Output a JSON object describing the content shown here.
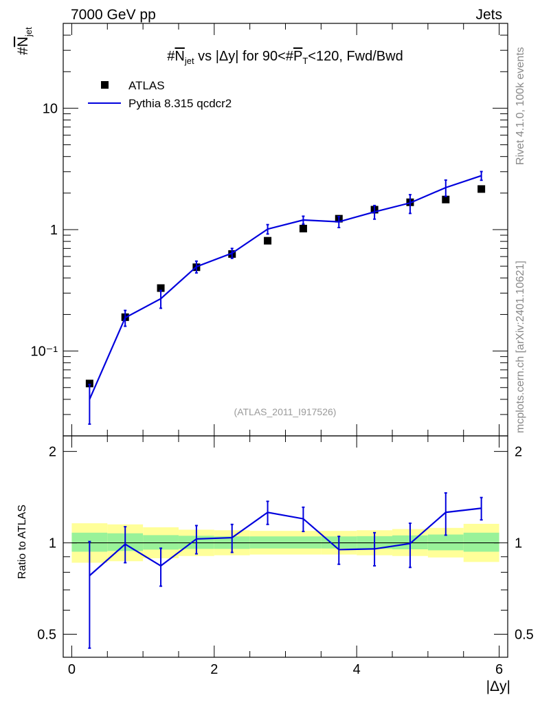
{
  "header": {
    "energy_label": "7000 GeV pp",
    "category_label": "Jets",
    "side_label_top": "Rivet 4.1.0,  100k events",
    "side_label_bottom": "mcplots.cern.ch [arXiv:2401.10621]",
    "analysis_id": "(ATLAS_2011_I917526)"
  },
  "chart_data": {
    "type": "scatter",
    "title": "#N_jet vs |Δy| for 90<#P_T<120, Fwd/Bwd",
    "title_parts": {
      "pre": "#",
      "n": "N",
      "n_sub": "jet",
      "mid": " vs |Δy| for 90<#",
      "p": "P",
      "p_sub": "T",
      "post": "<120, Fwd/Bwd"
    },
    "ylabel_main": "#N_jet",
    "ylabel_main_parts": {
      "hash": "#",
      "n": "N",
      "sub": "jet"
    },
    "ylabel_ratio": "Ratio to ATLAS",
    "xlabel": "|Δy|",
    "xlim": [
      -0.12,
      6.12
    ],
    "ylim_main": [
      0.02,
      50
    ],
    "ylim_ratio": [
      0.42,
      2.25
    ],
    "y_scale_main": "log",
    "y_scale_ratio": "log",
    "x_ticks": [
      0,
      2,
      4,
      6
    ],
    "x_tick_labels": [
      "0",
      "2",
      "4",
      "6"
    ],
    "y_ticks_main": [
      0.1,
      1,
      10
    ],
    "y_tick_labels_main": [
      "10⁻¹",
      "1",
      "10"
    ],
    "y_ticks_ratio": [
      0.5,
      1,
      2
    ],
    "y_tick_labels_ratio": [
      "0.5",
      "1",
      "2"
    ],
    "x": [
      0.25,
      0.75,
      1.25,
      1.75,
      2.25,
      2.75,
      3.25,
      3.75,
      4.25,
      4.75,
      5.25,
      5.75
    ],
    "series": [
      {
        "name": "ATLAS",
        "style": "markers",
        "values": [
          0.054,
          0.19,
          0.33,
          0.49,
          0.63,
          0.81,
          1.02,
          1.23,
          1.46,
          1.68,
          1.77,
          2.16
        ]
      },
      {
        "name": "Pythia 8.315 qcdcr2",
        "style": "line",
        "color": "#0000dd",
        "values": [
          0.04,
          0.188,
          0.27,
          0.495,
          0.64,
          1.01,
          1.2,
          1.16,
          1.4,
          1.66,
          2.22,
          2.78
        ],
        "err_low": [
          0.025,
          0.16,
          0.225,
          0.44,
          0.58,
          0.92,
          1.11,
          1.04,
          1.22,
          1.36,
          1.88,
          2.55
        ],
        "err_high": [
          0.053,
          0.216,
          0.315,
          0.55,
          0.7,
          1.1,
          1.29,
          1.28,
          1.58,
          1.94,
          2.56,
          3.01
        ]
      }
    ],
    "ratio": {
      "values": [
        0.78,
        0.99,
        0.84,
        1.03,
        1.04,
        1.26,
        1.2,
        0.95,
        0.955,
        0.995,
        1.26,
        1.3
      ],
      "err_low": [
        0.45,
        0.86,
        0.72,
        0.92,
        0.93,
        1.15,
        1.09,
        0.85,
        0.84,
        0.83,
        1.06,
        1.19
      ],
      "err_high": [
        1.01,
        1.13,
        0.96,
        1.14,
        1.15,
        1.37,
        1.31,
        1.05,
        1.08,
        1.16,
        1.46,
        1.41
      ]
    },
    "bands": {
      "x_edges": [
        0,
        0.5,
        1,
        1.5,
        2,
        2.5,
        3,
        3.5,
        4,
        4.5,
        5,
        5.5,
        6
      ],
      "yellow_low": [
        0.86,
        0.87,
        0.89,
        0.905,
        0.91,
        0.915,
        0.915,
        0.915,
        0.91,
        0.905,
        0.895,
        0.865
      ],
      "yellow_high": [
        1.16,
        1.15,
        1.125,
        1.105,
        1.1,
        1.095,
        1.095,
        1.095,
        1.1,
        1.11,
        1.12,
        1.155
      ],
      "green_low": [
        0.935,
        0.94,
        0.95,
        0.955,
        0.955,
        0.958,
        0.958,
        0.958,
        0.955,
        0.952,
        0.945,
        0.935
      ],
      "green_high": [
        1.08,
        1.075,
        1.06,
        1.055,
        1.05,
        1.05,
        1.05,
        1.05,
        1.052,
        1.058,
        1.065,
        1.08
      ]
    },
    "colors": {
      "mc": "#0000dd",
      "data": "#000000",
      "band_yellow": "#ffff99",
      "band_green": "#99f299"
    }
  }
}
